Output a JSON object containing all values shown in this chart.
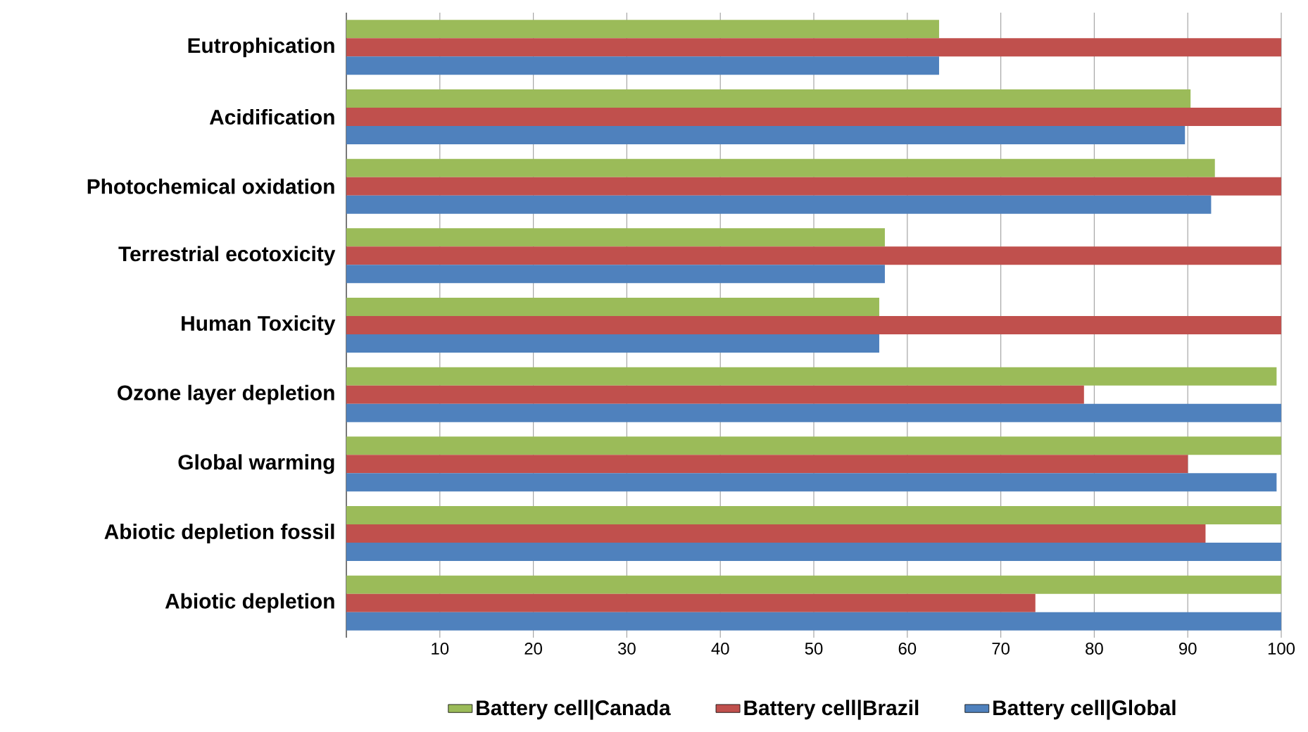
{
  "chart_data": {
    "type": "bar",
    "orientation": "horizontal",
    "categories": [
      "Eutrophication",
      "Acidification",
      "Photochemical oxidation",
      "Terrestrial ecotoxicity",
      "Human Toxicity",
      "Ozone layer depletion",
      "Global warming",
      "Abiotic depletion fossil",
      "Abiotic depletion"
    ],
    "series": [
      {
        "name": "Battery cell|Canada",
        "color": "#9bbb59",
        "values": [
          63.4,
          90.3,
          92.9,
          57.6,
          57.0,
          99.5,
          100,
          100,
          100
        ]
      },
      {
        "name": "Battery cell|Brazil",
        "color": "#c0504d",
        "values": [
          100,
          100,
          100,
          100,
          100,
          78.9,
          90.0,
          91.9,
          73.7
        ]
      },
      {
        "name": "Battery cell|Global",
        "color": "#4f81bd",
        "values": [
          63.4,
          89.7,
          92.5,
          57.6,
          57.0,
          100,
          99.5,
          100,
          100
        ]
      }
    ],
    "xlim": [
      0,
      100
    ],
    "xticks": [
      {
        "value": 0,
        "label": null
      },
      10,
      20,
      30,
      40,
      50,
      60,
      70,
      80,
      90,
      100
    ],
    "grid": "x",
    "legend": "bottom"
  }
}
